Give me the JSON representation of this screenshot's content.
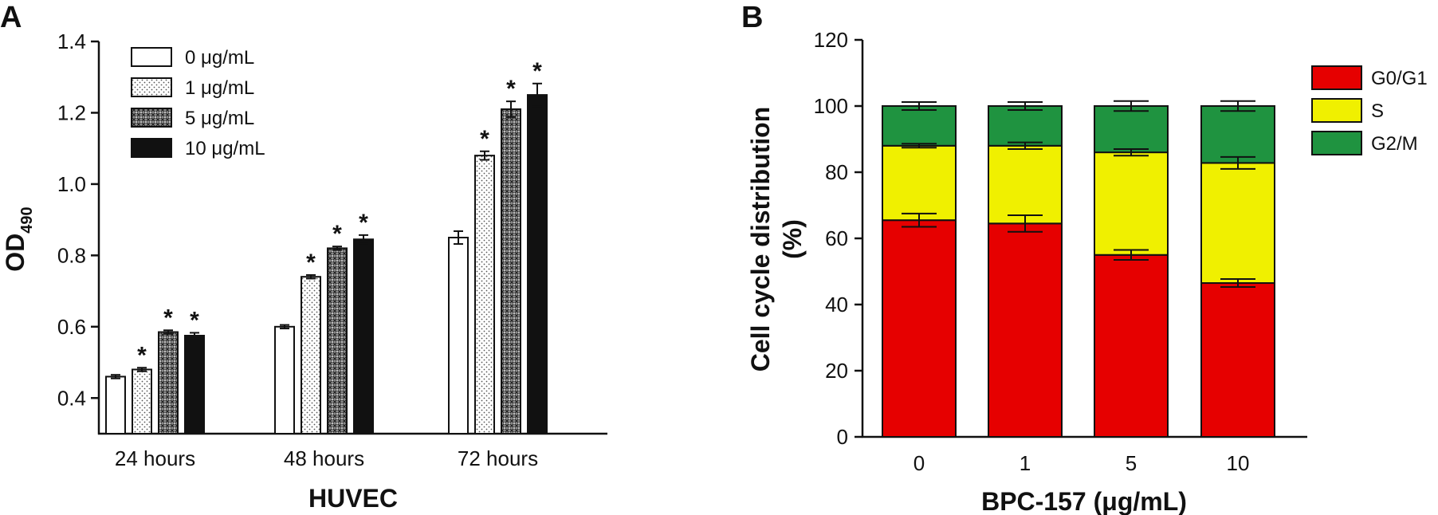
{
  "chart_data": [
    {
      "panel": "A",
      "type": "bar",
      "categories": [
        "24 hours",
        "48 hours",
        "72 hours"
      ],
      "xlabel": "HUVEC",
      "ylabel_main": "OD",
      "ylabel_sub": "490",
      "ylim": [
        0.3,
        1.4
      ],
      "yticks": [
        "0.4",
        "0.6",
        "0.8",
        "1.0",
        "1.2",
        "1.4"
      ],
      "grid": false,
      "legend_position": "top-left",
      "series": [
        {
          "name": "0 μg/mL",
          "values": [
            0.46,
            0.6,
            0.85
          ],
          "errors": [
            0.005,
            0.005,
            0.018
          ],
          "significant": [
            false,
            false,
            false
          ],
          "pattern": "white"
        },
        {
          "name": "1 μg/mL",
          "values": [
            0.48,
            0.74,
            1.08
          ],
          "errors": [
            0.005,
            0.005,
            0.012
          ],
          "significant": [
            true,
            true,
            true
          ],
          "pattern": "dots"
        },
        {
          "name": "5 μg/mL",
          "values": [
            0.585,
            0.82,
            1.21
          ],
          "errors": [
            0.005,
            0.005,
            0.022
          ],
          "significant": [
            true,
            true,
            true
          ],
          "pattern": "crosshatch"
        },
        {
          "name": "10 μg/mL",
          "values": [
            0.575,
            0.845,
            1.25
          ],
          "errors": [
            0.008,
            0.012,
            0.032
          ],
          "significant": [
            true,
            true,
            true
          ],
          "pattern": "black"
        }
      ],
      "significance_marker": "*"
    },
    {
      "panel": "B",
      "type": "bar",
      "stacked": true,
      "categories": [
        "0",
        "1",
        "5",
        "10"
      ],
      "xlabel": "BPC-157 (μg/mL)",
      "ylabel_line1": "Cell cycle distribution",
      "ylabel_line2": "(%)",
      "ylim": [
        0,
        120
      ],
      "yticks": [
        "0",
        "20",
        "40",
        "60",
        "80",
        "100",
        "120"
      ],
      "grid": false,
      "legend_position": "top-right",
      "series": [
        {
          "name": "G0/G1",
          "color": "#e60000",
          "values": [
            65.5,
            64.5,
            55,
            46.5
          ],
          "errors": [
            2.0,
            2.5,
            1.5,
            1.2
          ]
        },
        {
          "name": "S",
          "color": "#f0f000",
          "values": [
            22.5,
            23.5,
            31,
            36.3
          ],
          "errors": [
            0.6,
            1.0,
            1.0,
            1.8
          ]
        },
        {
          "name": "G2/M",
          "color": "#1f9340",
          "values": [
            12,
            12,
            14,
            17.2
          ],
          "errors": [
            1.2,
            1.2,
            1.5,
            1.5
          ]
        }
      ]
    }
  ]
}
